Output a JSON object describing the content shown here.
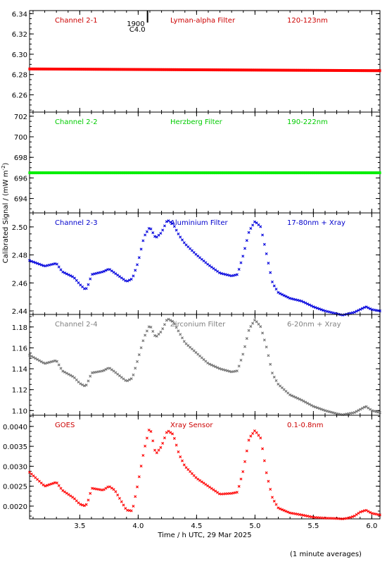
{
  "chart_data": {
    "type": "scatter",
    "xlabel": "Time / h UTC, 29 Mar 2025",
    "ylabel": "Calibrated Signal / (mW m",
    "ylabel_sup": "-2",
    "ylabel_end": ")",
    "xlim": [
      3.07,
      6.07
    ],
    "xticks": [
      "3.5",
      "4.0",
      "4.5",
      "5.0",
      "5.5",
      "6.0"
    ],
    "xtick_values": [
      3.5,
      4.0,
      4.5,
      5.0,
      5.5,
      6.0
    ],
    "footnote": "(1 minute averages)",
    "marker": {
      "time_top": "1900",
      "time_bottom": "C4.0",
      "x": 4.08
    },
    "panels": [
      {
        "channel": "Channel 2-1",
        "filter": "Lyman-alpha Filter",
        "band": "120-123nm",
        "color": "#ff0000",
        "label_color": "#cc0000",
        "marker": "dot",
        "ylim": [
          6.243,
          6.343
        ],
        "yticks": [
          "6.26",
          "6.28",
          "6.30",
          "6.32",
          "6.34"
        ],
        "ytick_values": [
          6.26,
          6.28,
          6.3,
          6.32,
          6.34
        ],
        "x": [
          3.07,
          6.07
        ],
        "y": [
          6.2855,
          6.2838
        ]
      },
      {
        "channel": "Channel 2-2",
        "filter": "Herzberg Filter",
        "band": "190-222nm",
        "color": "#00ee00",
        "label_color": "#00cc00",
        "marker": "dot",
        "ylim": [
          692.6,
          702.4
        ],
        "yticks": [
          "694",
          "696",
          "698",
          "700",
          "702"
        ],
        "ytick_values": [
          694,
          696,
          698,
          700,
          702
        ],
        "x": [
          3.07,
          6.07
        ],
        "y": [
          696.5,
          696.5
        ]
      },
      {
        "channel": "Channel 2-3",
        "filter": "Aluminium Filter",
        "band": "17-80nm + Xray",
        "color": "#0000dd",
        "label_color": "#0000cc",
        "marker": "cross",
        "ylim": [
          2.4375,
          2.51
        ],
        "yticks": [
          "2.44",
          "2.46",
          "2.48",
          "2.50"
        ],
        "ytick_values": [
          2.44,
          2.46,
          2.48,
          2.5
        ],
        "x": [
          3.07,
          3.2,
          3.3,
          3.35,
          3.45,
          3.5,
          3.55,
          3.58,
          3.6,
          3.7,
          3.75,
          3.8,
          3.9,
          3.95,
          4.0,
          4.05,
          4.1,
          4.15,
          4.2,
          4.25,
          4.3,
          4.35,
          4.4,
          4.5,
          4.6,
          4.7,
          4.8,
          4.85,
          4.9,
          4.95,
          5.0,
          5.05,
          5.1,
          5.15,
          5.2,
          5.3,
          5.4,
          5.5,
          5.6,
          5.7,
          5.75,
          5.8,
          5.85,
          5.9,
          5.95,
          6.0,
          6.07
        ],
        "y": [
          2.476,
          2.472,
          2.474,
          2.468,
          2.464,
          2.459,
          2.455,
          2.46,
          2.466,
          2.468,
          2.47,
          2.467,
          2.461,
          2.463,
          2.475,
          2.493,
          2.5,
          2.492,
          2.496,
          2.505,
          2.502,
          2.494,
          2.488,
          2.48,
          2.473,
          2.467,
          2.465,
          2.466,
          2.48,
          2.497,
          2.504,
          2.5,
          2.48,
          2.46,
          2.453,
          2.449,
          2.447,
          2.443,
          2.44,
          2.438,
          2.437,
          2.438,
          2.439,
          2.441,
          2.443,
          2.441,
          2.44
        ]
      },
      {
        "channel": "Channel 2-4",
        "filter": "Zirconium Filter",
        "band": "6-20nm + Xray",
        "color": "#707070",
        "label_color": "#808080",
        "marker": "cross",
        "ylim": [
          1.0955,
          1.192
        ],
        "yticks": [
          "1.10",
          "1.12",
          "1.14",
          "1.16",
          "1.18"
        ],
        "ytick_values": [
          1.1,
          1.12,
          1.14,
          1.16,
          1.18
        ],
        "x": [
          3.07,
          3.2,
          3.3,
          3.35,
          3.45,
          3.5,
          3.55,
          3.58,
          3.6,
          3.7,
          3.75,
          3.8,
          3.9,
          3.95,
          4.0,
          4.05,
          4.1,
          4.15,
          4.2,
          4.25,
          4.3,
          4.35,
          4.4,
          4.5,
          4.6,
          4.7,
          4.8,
          4.85,
          4.9,
          4.95,
          5.0,
          5.05,
          5.1,
          5.15,
          5.2,
          5.3,
          5.4,
          5.5,
          5.6,
          5.7,
          5.75,
          5.8,
          5.85,
          5.9,
          5.95,
          6.0,
          6.07
        ],
        "y": [
          1.153,
          1.145,
          1.148,
          1.138,
          1.132,
          1.126,
          1.123,
          1.13,
          1.136,
          1.138,
          1.141,
          1.137,
          1.128,
          1.131,
          1.15,
          1.17,
          1.182,
          1.17,
          1.176,
          1.188,
          1.185,
          1.175,
          1.165,
          1.155,
          1.145,
          1.14,
          1.137,
          1.138,
          1.155,
          1.178,
          1.187,
          1.18,
          1.16,
          1.135,
          1.125,
          1.115,
          1.11,
          1.104,
          1.1,
          1.097,
          1.096,
          1.097,
          1.098,
          1.101,
          1.104,
          1.1,
          1.098
        ]
      },
      {
        "channel": "GOES",
        "filter": "Xray Sensor",
        "band": "0.1-0.8nm",
        "color": "#ff0000",
        "label_color": "#cc0000",
        "marker": "cross",
        "ylim": [
          0.00168,
          0.00428
        ],
        "yticks": [
          "0.0020",
          "0.0025",
          "0.0030",
          "0.0035",
          "0.0040"
        ],
        "ytick_values": [
          0.002,
          0.0025,
          0.003,
          0.0035,
          0.004
        ],
        "x": [
          3.07,
          3.2,
          3.3,
          3.35,
          3.45,
          3.5,
          3.55,
          3.58,
          3.6,
          3.7,
          3.75,
          3.8,
          3.9,
          3.95,
          4.0,
          4.05,
          4.1,
          4.15,
          4.2,
          4.25,
          4.3,
          4.35,
          4.4,
          4.5,
          4.6,
          4.7,
          4.8,
          4.85,
          4.9,
          4.95,
          5.0,
          5.05,
          5.1,
          5.15,
          5.2,
          5.3,
          5.4,
          5.5,
          5.6,
          5.7,
          5.75,
          5.8,
          5.85,
          5.9,
          5.95,
          6.0,
          6.07
        ],
        "y": [
          0.00285,
          0.0025,
          0.0026,
          0.0024,
          0.0022,
          0.00205,
          0.002,
          0.0022,
          0.00245,
          0.0024,
          0.0025,
          0.0024,
          0.0019,
          0.00188,
          0.0026,
          0.0034,
          0.004,
          0.0033,
          0.0035,
          0.0039,
          0.0038,
          0.0033,
          0.003,
          0.0027,
          0.0025,
          0.0023,
          0.00232,
          0.00235,
          0.0029,
          0.0037,
          0.0039,
          0.0037,
          0.0028,
          0.0022,
          0.00195,
          0.00183,
          0.00178,
          0.00172,
          0.0017,
          0.00169,
          0.00168,
          0.0017,
          0.00175,
          0.00185,
          0.0019,
          0.00182,
          0.00178
        ]
      }
    ]
  }
}
